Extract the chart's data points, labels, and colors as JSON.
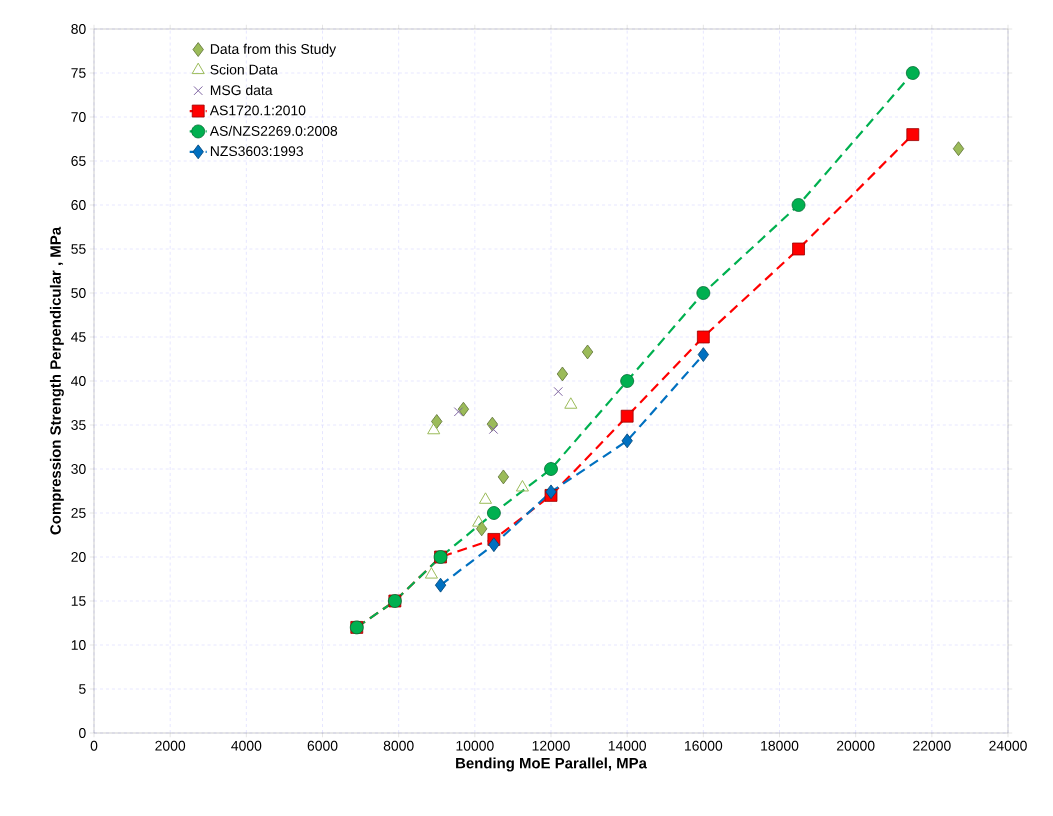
{
  "chart_data": {
    "type": "scatter",
    "xlabel": "Bending MoE Parallel, MPa",
    "ylabel": "Compression Strength Perpendicular , MPa",
    "xlim": [
      0,
      24000
    ],
    "ylim": [
      0,
      80
    ],
    "xticks": [
      0,
      2000,
      4000,
      6000,
      8000,
      10000,
      12000,
      14000,
      16000,
      18000,
      20000,
      22000,
      24000
    ],
    "yticks": [
      0,
      5,
      10,
      15,
      20,
      25,
      30,
      35,
      40,
      45,
      50,
      55,
      60,
      65,
      70,
      75,
      80
    ],
    "grid": true,
    "legend": "top left",
    "series": [
      {
        "name": "Data from this Study",
        "marker": "diamond",
        "color": "#9bbb59",
        "x": [
          9000,
          9700,
          10460,
          10750,
          10180,
          12300,
          12960,
          22700
        ],
        "values": [
          35.4,
          36.8,
          35.1,
          29.1,
          23.2,
          40.8,
          43.3,
          66.4
        ]
      },
      {
        "name": "Scion Data",
        "marker": "triangle",
        "color": "#9bbb59",
        "x": [
          8920,
          12520,
          11250,
          10280,
          10100,
          8860
        ],
        "values": [
          34.4,
          37.3,
          27.9,
          26.5,
          23.9,
          18.0
        ]
      },
      {
        "name": "MSG data",
        "marker": "cross",
        "color": "#8064a2",
        "x": [
          9570,
          10490,
          12190
        ],
        "values": [
          36.5,
          34.5,
          38.8
        ]
      },
      {
        "name": "AS1720.1:2010",
        "type": "line",
        "marker": "square",
        "line_style": "dashed",
        "color": "#ff0000",
        "x": [
          6900,
          7900,
          9100,
          10500,
          12000,
          14000,
          16000,
          18500,
          21500
        ],
        "values": [
          12,
          15,
          20,
          22,
          27,
          36,
          45,
          55,
          68
        ]
      },
      {
        "name": "AS/NZS2269.0:2008",
        "type": "line",
        "marker": "circle",
        "line_style": "dashed",
        "color": "#00b050",
        "x": [
          6900,
          7900,
          9100,
          10500,
          12000,
          14000,
          16000,
          18500,
          21500
        ],
        "values": [
          12,
          15,
          20,
          25,
          30,
          40,
          50,
          60,
          75
        ]
      },
      {
        "name": "NZS3603:1993",
        "type": "line",
        "marker": "diamond",
        "line_style": "dashed",
        "color": "#0070c0",
        "x": [
          9100,
          10500,
          12000,
          14000,
          16000
        ],
        "values": [
          16.8,
          21.4,
          27.4,
          33.2,
          43.0
        ]
      }
    ]
  }
}
